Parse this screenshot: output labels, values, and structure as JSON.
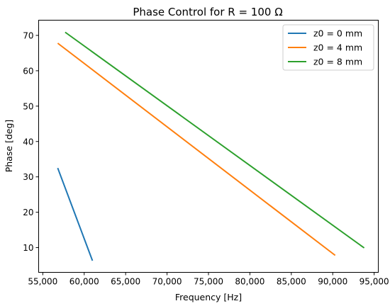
{
  "chart_data": {
    "type": "line",
    "title": "Phase Control for R = 100 Ω",
    "xlabel": "Frequency [Hz]",
    "ylabel": "Phase [deg]",
    "xlim": [
      54500,
      95500
    ],
    "ylim": [
      3.0,
      74.3
    ],
    "xticks": [
      55000,
      60000,
      65000,
      70000,
      75000,
      80000,
      85000,
      90000,
      95000
    ],
    "xtick_labels": [
      "55,000",
      "60,000",
      "65,000",
      "70,000",
      "75,000",
      "80,000",
      "85,000",
      "90,000",
      "95,000"
    ],
    "yticks": [
      10,
      20,
      30,
      40,
      50,
      60,
      70
    ],
    "ytick_labels": [
      "10",
      "20",
      "30",
      "40",
      "50",
      "60",
      "70"
    ],
    "grid": false,
    "legend_position": "top-right",
    "series": [
      {
        "name": "z0 = 0 mm",
        "color": "#1f77b4",
        "x": [
          56800,
          61000
        ],
        "y": [
          32.5,
          6.3
        ]
      },
      {
        "name": "z0 = 4 mm",
        "color": "#ff7f0e",
        "x": [
          56800,
          90300
        ],
        "y": [
          67.8,
          7.8
        ]
      },
      {
        "name": "z0 = 8 mm",
        "color": "#2ca02c",
        "x": [
          57700,
          93800
        ],
        "y": [
          70.9,
          9.9
        ]
      }
    ]
  }
}
